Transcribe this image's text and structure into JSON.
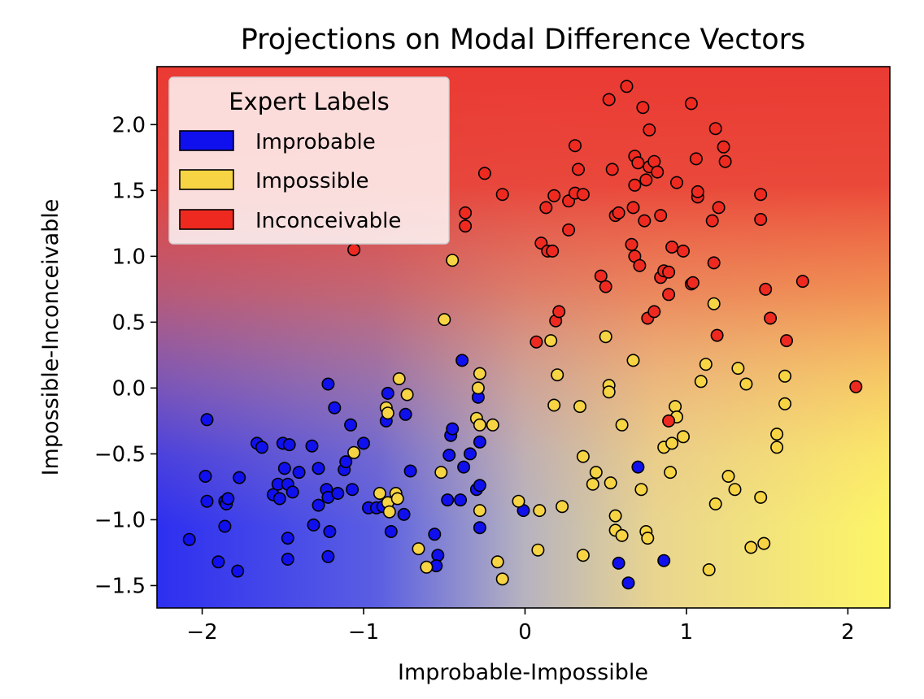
{
  "chart_data": {
    "type": "scatter",
    "title": "Projections on Modal Difference Vectors",
    "xlabel": "Improbable-Impossible",
    "ylabel": "Impossible-Inconceivable",
    "xlim": [
      -2.28,
      2.26
    ],
    "ylim": [
      -1.67,
      2.44
    ],
    "xticks": [
      -2,
      -1,
      0,
      1,
      2
    ],
    "xtick_labels": [
      "−2",
      "−1",
      "0",
      "1",
      "2"
    ],
    "yticks": [
      -1.5,
      -1.0,
      -0.5,
      0.0,
      0.5,
      1.0,
      1.5,
      2.0
    ],
    "ytick_labels": [
      "−1.5",
      "−1.0",
      "−0.5",
      "0.0",
      "0.5",
      "1.0",
      "1.5",
      "2.0"
    ],
    "grid": false,
    "legend": {
      "title": "Expert Labels",
      "placement": "top-left",
      "entries": [
        "Improbable",
        "Impossible",
        "Inconceivable"
      ]
    },
    "background": "decision-surface gradient: blue (lower-left) to yellow (lower-right) to red (top)",
    "series": [
      {
        "name": "Improbable",
        "color": "#1010ee",
        "points": [
          [
            -1.97,
            -0.24
          ],
          [
            -1.98,
            -0.67
          ],
          [
            -1.97,
            -0.86
          ],
          [
            -1.9,
            -1.32
          ],
          [
            -1.86,
            -0.86
          ],
          [
            -1.85,
            -0.88
          ],
          [
            -1.84,
            -0.84
          ],
          [
            -1.78,
            -1.39
          ],
          [
            -1.77,
            -0.68
          ],
          [
            -1.86,
            -1.05
          ],
          [
            -2.08,
            -1.15
          ],
          [
            -1.66,
            -0.42
          ],
          [
            -1.63,
            -0.45
          ],
          [
            -1.56,
            -0.81
          ],
          [
            -1.53,
            -0.73
          ],
          [
            -1.52,
            -0.84
          ],
          [
            -1.5,
            -0.42
          ],
          [
            -1.49,
            -0.61
          ],
          [
            -1.46,
            -0.43
          ],
          [
            -1.47,
            -0.73
          ],
          [
            -1.47,
            -1.14
          ],
          [
            -1.47,
            -1.3
          ],
          [
            -1.44,
            -0.79
          ],
          [
            -1.4,
            -0.64
          ],
          [
            -1.32,
            -0.44
          ],
          [
            -1.31,
            -1.04
          ],
          [
            -1.28,
            -0.61
          ],
          [
            -1.28,
            -0.89
          ],
          [
            -1.23,
            -0.77
          ],
          [
            -1.22,
            0.03
          ],
          [
            -1.22,
            -0.83
          ],
          [
            -1.21,
            -1.09
          ],
          [
            -1.22,
            -1.28
          ],
          [
            -1.18,
            -0.15
          ],
          [
            -1.16,
            -0.8
          ],
          [
            -1.12,
            -0.62
          ],
          [
            -1.11,
            -0.56
          ],
          [
            -1.08,
            -0.28
          ],
          [
            -1.07,
            -0.77
          ],
          [
            -1.0,
            -0.42
          ],
          [
            -0.97,
            -0.91
          ],
          [
            -0.92,
            -0.91
          ],
          [
            -0.88,
            -0.9
          ],
          [
            -0.86,
            -0.25
          ],
          [
            -0.85,
            -0.04
          ],
          [
            -0.83,
            -1.09
          ],
          [
            -0.75,
            -0.96
          ],
          [
            -0.74,
            -0.2
          ],
          [
            -0.71,
            -0.63
          ],
          [
            -0.56,
            -1.11
          ],
          [
            -0.54,
            -1.27
          ],
          [
            -0.55,
            -1.35
          ],
          [
            -0.48,
            -0.85
          ],
          [
            -0.47,
            -0.51
          ],
          [
            -0.46,
            -0.36
          ],
          [
            -0.45,
            -0.31
          ],
          [
            -0.4,
            -0.85
          ],
          [
            -0.38,
            -0.6
          ],
          [
            -0.39,
            0.21
          ],
          [
            -0.34,
            -0.5
          ],
          [
            -0.3,
            -0.77
          ],
          [
            -0.29,
            -0.07
          ],
          [
            -0.28,
            -0.74
          ],
          [
            -0.28,
            -0.41
          ],
          [
            -0.28,
            -1.06
          ],
          [
            0.58,
            -1.33
          ],
          [
            0.7,
            -0.6
          ],
          [
            0.64,
            -1.48
          ],
          [
            0.86,
            -1.31
          ],
          [
            -0.01,
            -0.93
          ]
        ]
      },
      {
        "name": "Impossible",
        "color": "#f7d443",
        "points": [
          [
            -1.06,
            -0.49
          ],
          [
            -0.9,
            -0.8
          ],
          [
            -0.86,
            -0.15
          ],
          [
            -0.85,
            -0.19
          ],
          [
            -0.85,
            -0.87
          ],
          [
            -0.84,
            -0.94
          ],
          [
            -0.8,
            -0.8
          ],
          [
            -0.79,
            -0.84
          ],
          [
            -0.78,
            0.07
          ],
          [
            -0.73,
            -0.05
          ],
          [
            -0.66,
            -1.22
          ],
          [
            -0.61,
            -1.36
          ],
          [
            -0.52,
            -0.64
          ],
          [
            -0.5,
            0.52
          ],
          [
            -0.45,
            0.97
          ],
          [
            -0.3,
            -0.23
          ],
          [
            -0.29,
            -0.0
          ],
          [
            -0.28,
            0.11
          ],
          [
            -0.28,
            -0.28
          ],
          [
            -0.28,
            -0.93
          ],
          [
            -0.2,
            -0.28
          ],
          [
            -0.17,
            -1.32
          ],
          [
            -0.14,
            -1.45
          ],
          [
            -0.04,
            -0.86
          ],
          [
            0.09,
            -0.93
          ],
          [
            0.08,
            -1.23
          ],
          [
            0.16,
            0.36
          ],
          [
            0.18,
            -0.13
          ],
          [
            0.2,
            0.1
          ],
          [
            0.23,
            -0.9
          ],
          [
            0.34,
            -0.14
          ],
          [
            0.36,
            -0.52
          ],
          [
            0.36,
            -1.27
          ],
          [
            0.42,
            -0.73
          ],
          [
            0.44,
            -0.64
          ],
          [
            0.5,
            0.39
          ],
          [
            0.52,
            0.02
          ],
          [
            0.52,
            -0.03
          ],
          [
            0.53,
            -0.72
          ],
          [
            0.56,
            -0.97
          ],
          [
            0.56,
            -1.08
          ],
          [
            0.6,
            -1.12
          ],
          [
            0.6,
            -0.28
          ],
          [
            0.67,
            0.21
          ],
          [
            0.72,
            -0.77
          ],
          [
            0.75,
            -1.09
          ],
          [
            0.76,
            -1.14
          ],
          [
            0.86,
            -0.45
          ],
          [
            0.9,
            -0.64
          ],
          [
            0.91,
            -0.42
          ],
          [
            0.93,
            -0.14
          ],
          [
            0.94,
            -0.22
          ],
          [
            0.98,
            -0.37
          ],
          [
            1.09,
            0.05
          ],
          [
            1.12,
            0.18
          ],
          [
            1.14,
            -1.38
          ],
          [
            1.17,
            0.64
          ],
          [
            1.18,
            -0.88
          ],
          [
            1.26,
            -0.67
          ],
          [
            1.3,
            -0.77
          ],
          [
            1.32,
            0.15
          ],
          [
            1.37,
            0.03
          ],
          [
            1.4,
            -1.21
          ],
          [
            1.46,
            -0.83
          ],
          [
            1.48,
            -1.18
          ],
          [
            1.56,
            -0.35
          ],
          [
            1.56,
            -0.45
          ],
          [
            1.61,
            0.09
          ],
          [
            1.61,
            -0.12
          ]
        ]
      },
      {
        "name": "Inconceivable",
        "color": "#ee2a20",
        "points": [
          [
            -1.06,
            1.05
          ],
          [
            -0.37,
            1.33
          ],
          [
            -0.37,
            1.23
          ],
          [
            -0.25,
            1.63
          ],
          [
            -0.14,
            1.47
          ],
          [
            0.07,
            0.35
          ],
          [
            0.1,
            1.1
          ],
          [
            0.13,
            1.37
          ],
          [
            0.14,
            1.04
          ],
          [
            0.17,
            1.04
          ],
          [
            0.18,
            1.46
          ],
          [
            0.19,
            0.51
          ],
          [
            0.21,
            0.58
          ],
          [
            0.27,
            1.2
          ],
          [
            0.27,
            1.42
          ],
          [
            0.31,
            1.84
          ],
          [
            0.31,
            1.48
          ],
          [
            0.33,
            1.66
          ],
          [
            0.36,
            1.47
          ],
          [
            0.47,
            0.85
          ],
          [
            0.5,
            0.77
          ],
          [
            0.52,
            2.19
          ],
          [
            0.54,
            1.66
          ],
          [
            0.56,
            1.31
          ],
          [
            0.58,
            1.33
          ],
          [
            0.63,
            2.29
          ],
          [
            0.66,
            1.09
          ],
          [
            0.67,
            1.37
          ],
          [
            0.68,
            1.76
          ],
          [
            0.68,
            1.54
          ],
          [
            0.68,
            1.0
          ],
          [
            0.7,
            1.71
          ],
          [
            0.71,
            0.93
          ],
          [
            0.73,
            2.13
          ],
          [
            0.74,
            1.27
          ],
          [
            0.75,
            1.58
          ],
          [
            0.76,
            0.53
          ],
          [
            0.77,
            1.68
          ],
          [
            0.77,
            1.96
          ],
          [
            0.8,
            0.58
          ],
          [
            0.8,
            1.72
          ],
          [
            0.82,
            1.64
          ],
          [
            0.84,
            1.31
          ],
          [
            0.84,
            0.84
          ],
          [
            0.86,
            0.89
          ],
          [
            0.89,
            0.88
          ],
          [
            0.89,
            0.71
          ],
          [
            0.91,
            1.07
          ],
          [
            0.94,
            1.56
          ],
          [
            0.98,
            1.04
          ],
          [
            1.03,
            2.16
          ],
          [
            1.03,
            0.79
          ],
          [
            1.04,
            0.8
          ],
          [
            1.06,
            1.74
          ],
          [
            1.07,
            1.45
          ],
          [
            1.07,
            1.49
          ],
          [
            1.16,
            1.27
          ],
          [
            1.17,
            0.95
          ],
          [
            1.18,
            1.97
          ],
          [
            1.19,
            0.4
          ],
          [
            1.2,
            1.37
          ],
          [
            1.23,
            1.83
          ],
          [
            1.24,
            1.72
          ],
          [
            1.46,
            1.47
          ],
          [
            1.46,
            1.28
          ],
          [
            1.49,
            0.75
          ],
          [
            1.52,
            0.53
          ],
          [
            1.62,
            0.36
          ],
          [
            1.72,
            0.81
          ],
          [
            2.05,
            0.01
          ],
          [
            0.89,
            -0.25
          ]
        ]
      }
    ]
  }
}
